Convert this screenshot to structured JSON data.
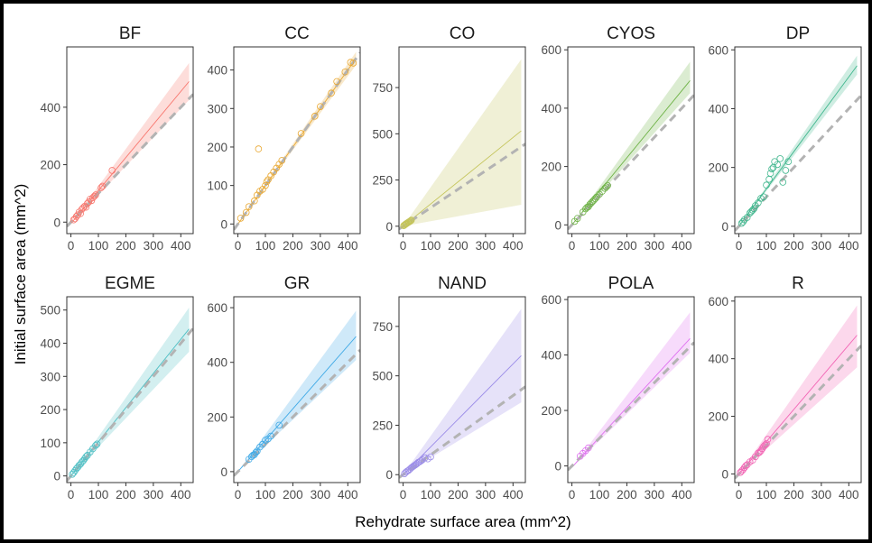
{
  "chart_data": {
    "type": "scatter",
    "xlabel": "Rehydrate surface area (mm^2)",
    "ylabel": "Initial surface area (mm^2)",
    "reference_line": {
      "style": "dashed",
      "color": "#b3b3b3",
      "slope": 1,
      "intercept": 0
    },
    "grid": false,
    "legend": "none",
    "x_ticks": [
      0,
      100,
      200,
      300,
      400
    ],
    "xlim": [
      -15,
      445
    ],
    "panels": [
      {
        "name": "BF",
        "color": "#F8766D",
        "ylim": [
          -40,
          610
        ],
        "y_ticks": [
          0,
          200,
          400
        ],
        "fit": {
          "slope": 1.15,
          "intercept": -5,
          "band_low_slope": 1.0,
          "band_high_slope": 1.3
        },
        "points": [
          [
            10,
            8
          ],
          [
            15,
            12
          ],
          [
            20,
            20
          ],
          [
            25,
            25
          ],
          [
            30,
            35
          ],
          [
            35,
            30
          ],
          [
            40,
            45
          ],
          [
            45,
            50
          ],
          [
            50,
            55
          ],
          [
            55,
            52
          ],
          [
            60,
            65
          ],
          [
            65,
            70
          ],
          [
            70,
            80
          ],
          [
            75,
            75
          ],
          [
            80,
            85
          ],
          [
            85,
            90
          ],
          [
            90,
            95
          ],
          [
            110,
            120
          ],
          [
            115,
            125
          ],
          [
            150,
            180
          ]
        ]
      },
      {
        "name": "CC",
        "color": "#E9A72F",
        "ylim": [
          -25,
          460
        ],
        "y_ticks": [
          0,
          100,
          200,
          300,
          400
        ],
        "fit": {
          "slope": 1.0,
          "intercept": 0,
          "band_low_slope": 0.96,
          "band_high_slope": 1.04
        },
        "points": [
          [
            10,
            15
          ],
          [
            30,
            30
          ],
          [
            40,
            45
          ],
          [
            60,
            60
          ],
          [
            70,
            75
          ],
          [
            75,
            195
          ],
          [
            80,
            85
          ],
          [
            90,
            90
          ],
          [
            100,
            100
          ],
          [
            105,
            110
          ],
          [
            110,
            115
          ],
          [
            120,
            125
          ],
          [
            130,
            135
          ],
          [
            140,
            145
          ],
          [
            150,
            155
          ],
          [
            160,
            165
          ],
          [
            230,
            235
          ],
          [
            280,
            280
          ],
          [
            300,
            305
          ],
          [
            340,
            340
          ],
          [
            360,
            370
          ],
          [
            390,
            395
          ],
          [
            410,
            420
          ],
          [
            420,
            418
          ]
        ]
      },
      {
        "name": "CO",
        "color": "#C4C45A",
        "ylim": [
          -40,
          970
        ],
        "y_ticks": [
          0,
          250,
          500,
          750
        ],
        "fit": {
          "slope": 1.2,
          "intercept": 0,
          "band_low_slope": 0.27,
          "band_high_slope": 2.1
        },
        "points": [
          [
            2,
            3
          ],
          [
            5,
            6
          ],
          [
            8,
            10
          ],
          [
            10,
            12
          ],
          [
            12,
            14
          ],
          [
            15,
            17
          ],
          [
            18,
            20
          ],
          [
            20,
            22
          ],
          [
            22,
            24
          ],
          [
            25,
            27
          ],
          [
            28,
            30
          ],
          [
            30,
            33
          ]
        ]
      },
      {
        "name": "CYOS",
        "color": "#6EB246",
        "ylim": [
          -30,
          610
        ],
        "y_ticks": [
          0,
          200,
          400,
          600
        ],
        "fit": {
          "slope": 1.15,
          "intercept": 0,
          "band_low_slope": 1.05,
          "band_high_slope": 1.3
        },
        "points": [
          [
            10,
            12
          ],
          [
            20,
            22
          ],
          [
            40,
            44
          ],
          [
            50,
            55
          ],
          [
            55,
            60
          ],
          [
            60,
            62
          ],
          [
            65,
            70
          ],
          [
            70,
            75
          ],
          [
            75,
            80
          ],
          [
            80,
            85
          ],
          [
            85,
            90
          ],
          [
            90,
            95
          ],
          [
            100,
            105
          ],
          [
            110,
            115
          ],
          [
            120,
            125
          ],
          [
            125,
            130
          ],
          [
            130,
            135
          ]
        ]
      },
      {
        "name": "DP",
        "color": "#3FB68D",
        "ylim": [
          -25,
          610
        ],
        "y_ticks": [
          0,
          200,
          400,
          600
        ],
        "fit": {
          "slope": 1.27,
          "intercept": 0,
          "band_low_slope": 1.2,
          "band_high_slope": 1.35
        },
        "points": [
          [
            10,
            10
          ],
          [
            15,
            15
          ],
          [
            20,
            22
          ],
          [
            30,
            30
          ],
          [
            40,
            45
          ],
          [
            45,
            50
          ],
          [
            50,
            55
          ],
          [
            55,
            60
          ],
          [
            60,
            70
          ],
          [
            70,
            80
          ],
          [
            80,
            95
          ],
          [
            90,
            100
          ],
          [
            100,
            140
          ],
          [
            110,
            160
          ],
          [
            115,
            180
          ],
          [
            120,
            195
          ],
          [
            125,
            200
          ],
          [
            130,
            220
          ],
          [
            140,
            210
          ],
          [
            150,
            230
          ],
          [
            160,
            150
          ],
          [
            170,
            190
          ],
          [
            180,
            220
          ]
        ]
      },
      {
        "name": "EGME",
        "color": "#4EBFC4",
        "ylim": [
          -20,
          540
        ],
        "y_ticks": [
          0,
          100,
          200,
          300,
          400,
          500
        ],
        "fit": {
          "slope": 1.03,
          "intercept": 0,
          "band_low_slope": 0.87,
          "band_high_slope": 1.18
        },
        "points": [
          [
            5,
            5
          ],
          [
            10,
            10
          ],
          [
            15,
            16
          ],
          [
            20,
            22
          ],
          [
            25,
            26
          ],
          [
            30,
            32
          ],
          [
            35,
            36
          ],
          [
            40,
            42
          ],
          [
            45,
            46
          ],
          [
            50,
            52
          ],
          [
            55,
            58
          ],
          [
            60,
            62
          ],
          [
            70,
            72
          ],
          [
            80,
            82
          ],
          [
            90,
            92
          ],
          [
            95,
            96
          ]
        ]
      },
      {
        "name": "GR",
        "color": "#3FA9E6",
        "ylim": [
          -40,
          640
        ],
        "y_ticks": [
          0,
          200,
          400,
          600
        ],
        "fit": {
          "slope": 1.15,
          "intercept": 0,
          "band_low_slope": 0.95,
          "band_high_slope": 1.37
        },
        "points": [
          [
            40,
            45
          ],
          [
            50,
            55
          ],
          [
            55,
            60
          ],
          [
            60,
            62
          ],
          [
            65,
            70
          ],
          [
            70,
            75
          ],
          [
            80,
            90
          ],
          [
            90,
            100
          ],
          [
            100,
            115
          ],
          [
            110,
            120
          ],
          [
            120,
            130
          ],
          [
            150,
            170
          ]
        ]
      },
      {
        "name": "NAND",
        "color": "#9B8CE8",
        "ylim": [
          -40,
          900
        ],
        "y_ticks": [
          0,
          250,
          500,
          750
        ],
        "fit": {
          "slope": 1.4,
          "intercept": 0,
          "band_low_slope": 0.85,
          "band_high_slope": 1.95
        },
        "points": [
          [
            5,
            5
          ],
          [
            10,
            12
          ],
          [
            15,
            18
          ],
          [
            20,
            22
          ],
          [
            25,
            28
          ],
          [
            30,
            35
          ],
          [
            35,
            40
          ],
          [
            40,
            45
          ],
          [
            45,
            50
          ],
          [
            50,
            55
          ],
          [
            55,
            62
          ],
          [
            60,
            65
          ],
          [
            65,
            70
          ],
          [
            70,
            75
          ],
          [
            80,
            85
          ],
          [
            90,
            80
          ],
          [
            100,
            90
          ]
        ]
      },
      {
        "name": "POLA",
        "color": "#DF70F0",
        "ylim": [
          -60,
          610
        ],
        "y_ticks": [
          0,
          200,
          400,
          600
        ],
        "fit": {
          "slope": 1.08,
          "intercept": -5,
          "band_low_slope": 0.96,
          "band_high_slope": 1.3
        },
        "points": [
          [
            30,
            35
          ],
          [
            40,
            45
          ],
          [
            50,
            55
          ],
          [
            60,
            65
          ]
        ]
      },
      {
        "name": "R",
        "color": "#F264B4",
        "ylim": [
          -30,
          615
        ],
        "y_ticks": [
          0,
          200,
          400,
          600
        ],
        "fit": {
          "slope": 1.12,
          "intercept": 0,
          "band_low_slope": 0.86,
          "band_high_slope": 1.36
        },
        "points": [
          [
            5,
            5
          ],
          [
            10,
            10
          ],
          [
            15,
            15
          ],
          [
            20,
            22
          ],
          [
            25,
            28
          ],
          [
            30,
            32
          ],
          [
            40,
            42
          ],
          [
            50,
            48
          ],
          [
            60,
            60
          ],
          [
            70,
            72
          ],
          [
            75,
            75
          ],
          [
            80,
            80
          ],
          [
            85,
            88
          ],
          [
            90,
            95
          ],
          [
            95,
            100
          ],
          [
            100,
            105
          ],
          [
            105,
            120
          ]
        ]
      }
    ]
  }
}
